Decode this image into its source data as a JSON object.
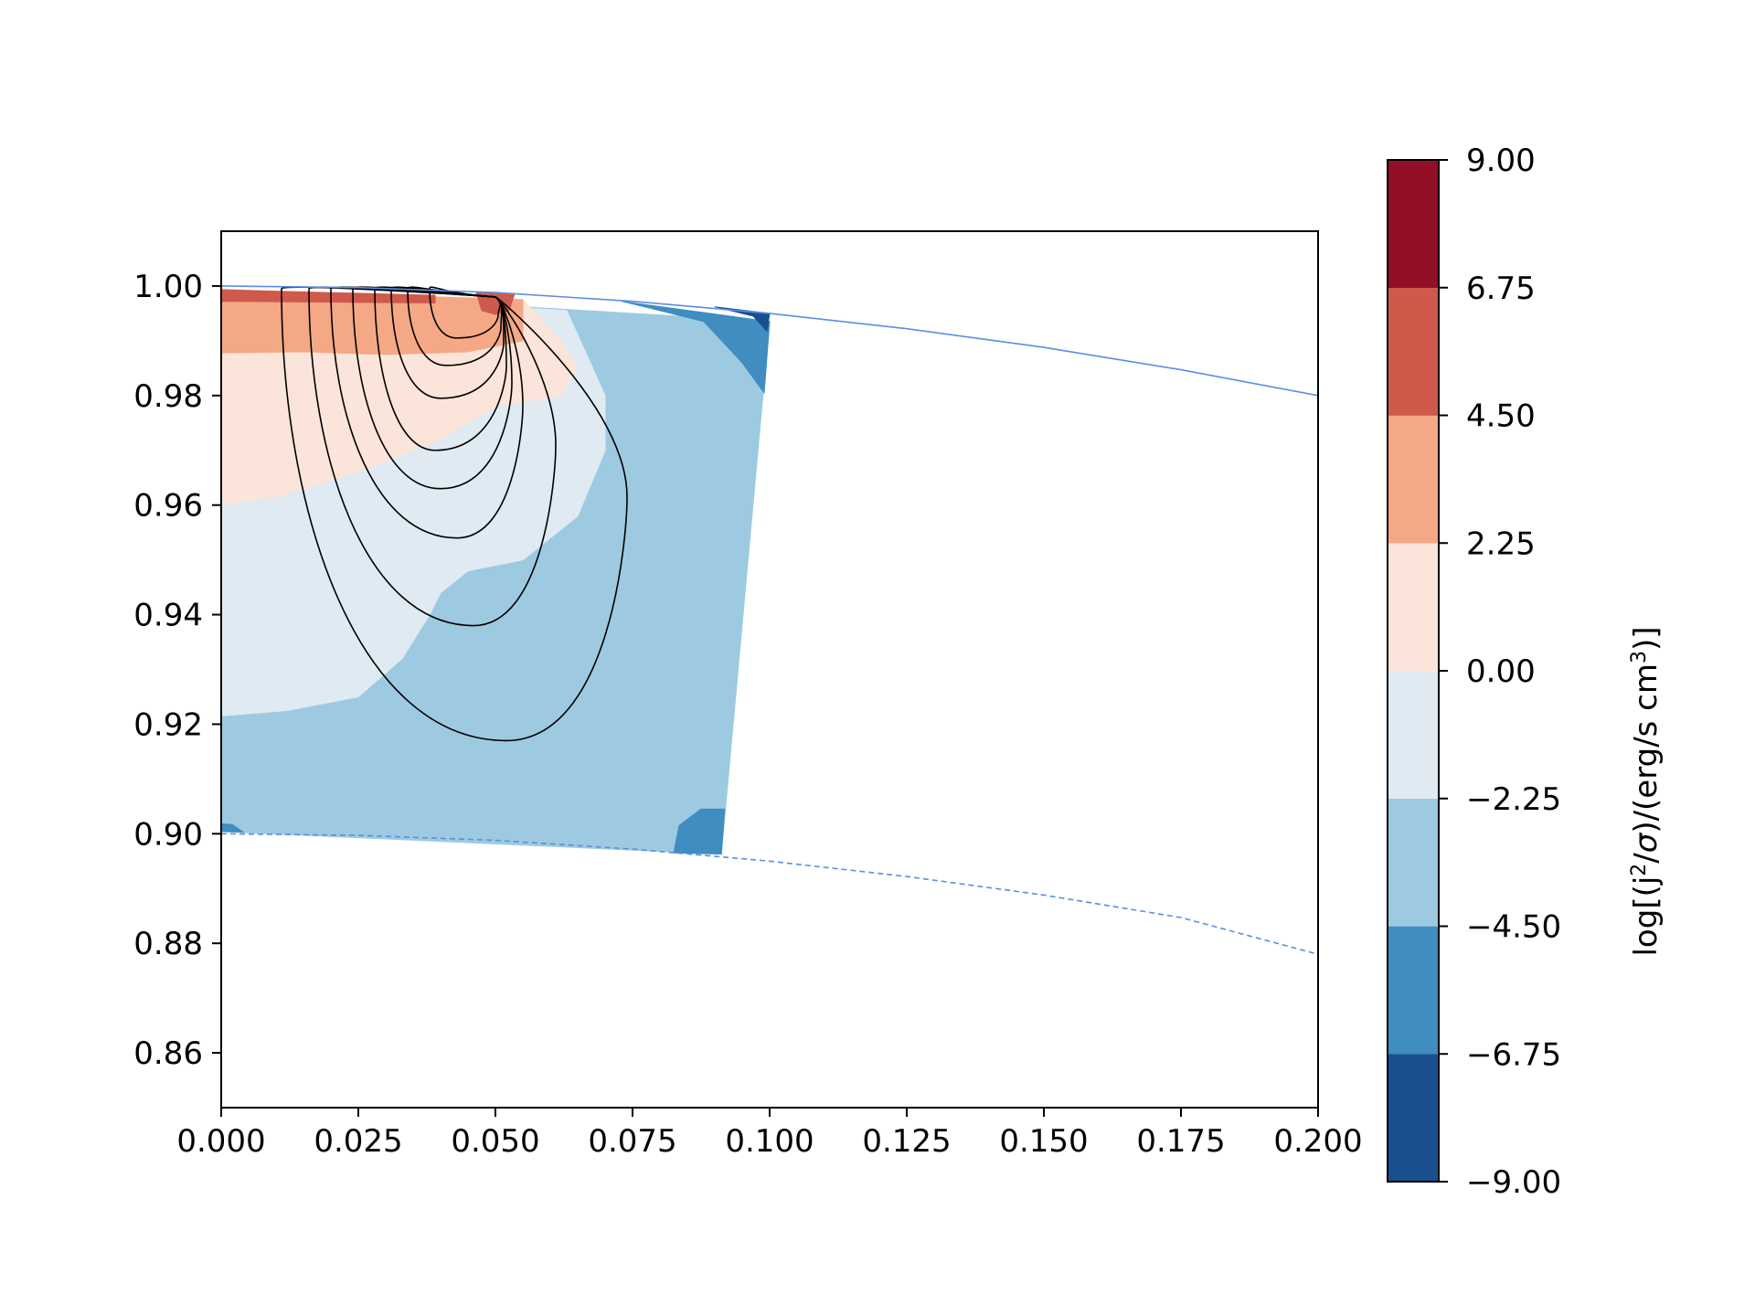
{
  "chart_data": {
    "type": "heatmap",
    "title": "",
    "xlabel": "",
    "ylabel": "",
    "xlim": [
      0.0,
      0.2
    ],
    "ylim": [
      0.85,
      1.01
    ],
    "x_ticks": [
      "0.000",
      "0.025",
      "0.050",
      "0.075",
      "0.100",
      "0.125",
      "0.150",
      "0.175",
      "0.200"
    ],
    "y_ticks": [
      "0.86",
      "0.88",
      "0.90",
      "0.92",
      "0.94",
      "0.96",
      "0.98",
      "1.00"
    ],
    "grid": false,
    "colorbar": {
      "label": "log[(j²/σ)/(erg/s cm³)]",
      "label_parts": [
        "log[(j",
        "2",
        "/",
        "σ",
        ")/(erg/s cm",
        "3",
        ")]"
      ],
      "ticks": [
        "9.00",
        "6.75",
        "4.50",
        "2.25",
        "0.00",
        "−2.25",
        "−4.50",
        "−6.75",
        "−9.00"
      ],
      "levels": [
        -9.0,
        -6.75,
        -4.5,
        -2.25,
        0.0,
        2.25,
        4.5,
        6.75,
        9.0
      ],
      "colors": [
        "#1a4f8f",
        "#3f8dc1",
        "#9ecae1",
        "#dfeaf2",
        "#fbe4d9",
        "#f4a886",
        "#cf5a4b",
        "#920f27"
      ]
    },
    "outer_boundary": {
      "style": "solid",
      "color": "#5a8ee6",
      "points": [
        [
          0.0,
          1.0
        ],
        [
          0.025,
          0.9997
        ],
        [
          0.05,
          0.9988
        ],
        [
          0.075,
          0.9972
        ],
        [
          0.1,
          0.995
        ],
        [
          0.125,
          0.9922
        ],
        [
          0.15,
          0.9888
        ],
        [
          0.175,
          0.9847
        ],
        [
          0.2,
          0.98
        ]
      ]
    },
    "inner_boundary": {
      "style": "dashed",
      "color": "#5a8ee6",
      "points": [
        [
          0.0,
          0.9
        ],
        [
          0.025,
          0.8997
        ],
        [
          0.05,
          0.8988
        ],
        [
          0.075,
          0.8972
        ],
        [
          0.1,
          0.895
        ],
        [
          0.125,
          0.8922
        ],
        [
          0.15,
          0.8888
        ],
        [
          0.175,
          0.8847
        ],
        [
          0.2,
          0.878
        ]
      ]
    },
    "filled_regions": [
      {
        "level_range": [
          -4.5,
          -2.25
        ],
        "color": "#9ecae1",
        "points": [
          [
            0.0,
            0.9995
          ],
          [
            0.1,
            0.9935
          ],
          [
            0.0912,
            0.8963
          ],
          [
            0.0,
            0.9004
          ]
        ]
      },
      {
        "level_range": [
          -2.25,
          0.0
        ],
        "color": "#dfeaf2",
        "points": [
          [
            0.0,
            0.9995
          ],
          [
            0.063,
            0.9955
          ],
          [
            0.07,
            0.98
          ],
          [
            0.07,
            0.97
          ],
          [
            0.065,
            0.958
          ],
          [
            0.055,
            0.95
          ],
          [
            0.045,
            0.948
          ],
          [
            0.04,
            0.944
          ],
          [
            0.038,
            0.94
          ],
          [
            0.033,
            0.932
          ],
          [
            0.025,
            0.925
          ],
          [
            0.012,
            0.9225
          ],
          [
            0.0,
            0.9215
          ]
        ]
      },
      {
        "level_range": [
          0.0,
          2.25
        ],
        "color": "#fbe4d9",
        "points": [
          [
            0.0,
            0.9993
          ],
          [
            0.055,
            0.9975
          ],
          [
            0.062,
            0.99
          ],
          [
            0.065,
            0.985
          ],
          [
            0.062,
            0.98
          ],
          [
            0.05,
            0.978
          ],
          [
            0.04,
            0.972
          ],
          [
            0.025,
            0.966
          ],
          [
            0.01,
            0.9615
          ],
          [
            0.0,
            0.96
          ]
        ]
      },
      {
        "level_range": [
          2.25,
          4.5
        ],
        "color": "#f4a886",
        "points": [
          [
            0.0,
            0.9993
          ],
          [
            0.055,
            0.9975
          ],
          [
            0.055,
            0.99
          ],
          [
            0.045,
            0.988
          ],
          [
            0.03,
            0.9875
          ],
          [
            0.015,
            0.988
          ],
          [
            0.0,
            0.9878
          ]
        ]
      },
      {
        "level_range": [
          4.5,
          6.75
        ],
        "color": "#cf5a4b",
        "points": [
          [
            0.0,
            0.9993
          ],
          [
            0.039,
            0.9983
          ],
          [
            0.039,
            0.9969
          ],
          [
            0.0,
            0.9972
          ]
        ]
      },
      {
        "level_range": [
          4.5,
          6.75
        ],
        "color": "#cf5a4b",
        "points": [
          [
            0.0465,
            0.9988
          ],
          [
            0.0535,
            0.9986
          ],
          [
            0.0525,
            0.9955
          ],
          [
            0.05,
            0.9948
          ],
          [
            0.0475,
            0.9955
          ]
        ]
      },
      {
        "level_range": [
          -6.75,
          -4.5
        ],
        "color": "#3f8dc1",
        "points": [
          [
            0.073,
            0.9972
          ],
          [
            0.1,
            0.9935
          ],
          [
            0.099,
            0.9805
          ],
          [
            0.095,
            0.986
          ],
          [
            0.088,
            0.9935
          ],
          [
            0.078,
            0.996
          ]
        ]
      },
      {
        "level_range": [
          -9.0,
          -6.75
        ],
        "color": "#1a4f8f",
        "points": [
          [
            0.09,
            0.9962
          ],
          [
            0.1,
            0.995
          ],
          [
            0.0995,
            0.9918
          ],
          [
            0.097,
            0.9945
          ]
        ]
      },
      {
        "level_range": [
          -6.75,
          -4.5
        ],
        "color": "#3f8dc1",
        "points": [
          [
            0.0825,
            0.8965
          ],
          [
            0.0912,
            0.8963
          ],
          [
            0.0918,
            0.9045
          ],
          [
            0.0875,
            0.9045
          ],
          [
            0.0835,
            0.9015
          ]
        ]
      },
      {
        "level_range": [
          -6.75,
          -4.5
        ],
        "color": "#3f8dc1",
        "points": [
          [
            0.0,
            0.9004
          ],
          [
            0.004,
            0.9003
          ],
          [
            0.002,
            0.9017
          ],
          [
            0.0,
            0.9018
          ]
        ]
      }
    ],
    "contour_lines": {
      "color": "#000000",
      "source": [
        0.05,
        0.998
      ],
      "lines": [
        {
          "x_left": 0.011,
          "x_bottom": 0.052,
          "y_bottom": 0.917,
          "x_right": 0.074
        },
        {
          "x_left": 0.016,
          "x_bottom": 0.046,
          "y_bottom": 0.938,
          "x_right": 0.061
        },
        {
          "x_left": 0.02,
          "x_bottom": 0.043,
          "y_bottom": 0.954,
          "x_right": 0.055
        },
        {
          "x_left": 0.024,
          "x_bottom": 0.04,
          "y_bottom": 0.963,
          "x_right": 0.053
        },
        {
          "x_left": 0.028,
          "x_bottom": 0.039,
          "y_bottom": 0.97,
          "x_right": 0.052
        },
        {
          "x_left": 0.031,
          "x_bottom": 0.04,
          "y_bottom": 0.9795,
          "x_right": 0.0515
        },
        {
          "x_left": 0.034,
          "x_bottom": 0.041,
          "y_bottom": 0.9855,
          "x_right": 0.051
        },
        {
          "x_left": 0.038,
          "x_bottom": 0.043,
          "y_bottom": 0.9905,
          "x_right": 0.0505
        }
      ]
    }
  }
}
